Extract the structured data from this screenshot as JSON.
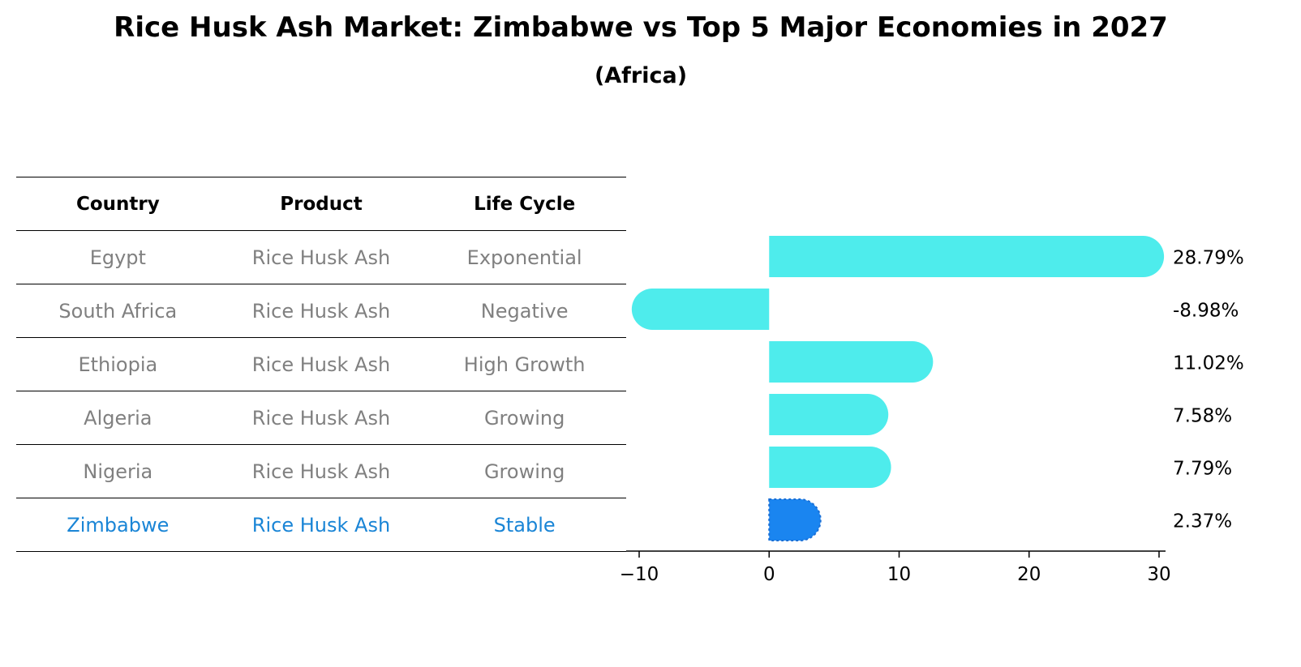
{
  "title": "Rice Husk Ash Market: Zimbabwe vs Top 5 Major Economies in 2027",
  "subtitle": "(Africa)",
  "table": {
    "headers": [
      "Country",
      "Product",
      "Life Cycle"
    ],
    "rows": [
      [
        "Egypt",
        "Rice Husk Ash",
        "Exponential"
      ],
      [
        "South Africa",
        "Rice Husk Ash",
        "Negative"
      ],
      [
        "Ethiopia",
        "Rice Husk Ash",
        "High Growth"
      ],
      [
        "Algeria",
        "Rice Husk Ash",
        "Growing"
      ],
      [
        "Nigeria",
        "Rice Husk Ash",
        "Growing"
      ],
      [
        "Zimbabwe",
        "Rice Husk Ash",
        "Stable"
      ]
    ],
    "highlight_row": 5
  },
  "chart_data": {
    "type": "bar",
    "orientation": "horizontal",
    "categories": [
      "Egypt",
      "South Africa",
      "Ethiopia",
      "Algeria",
      "Nigeria",
      "Zimbabwe"
    ],
    "values": [
      28.79,
      -8.98,
      11.02,
      7.58,
      7.79,
      2.37
    ],
    "data_labels": [
      "28.79%",
      "-8.98%",
      "11.02%",
      "7.58%",
      "7.79%",
      "2.37%"
    ],
    "xlim": [
      -11,
      30.5
    ],
    "xticks": [
      -10,
      0,
      10,
      20,
      30
    ],
    "xtick_labels": [
      "−10",
      "0",
      "10",
      "20",
      "30"
    ],
    "grid": false,
    "colors": {
      "default": "#4eecec",
      "highlight": "#1a85f0"
    }
  }
}
